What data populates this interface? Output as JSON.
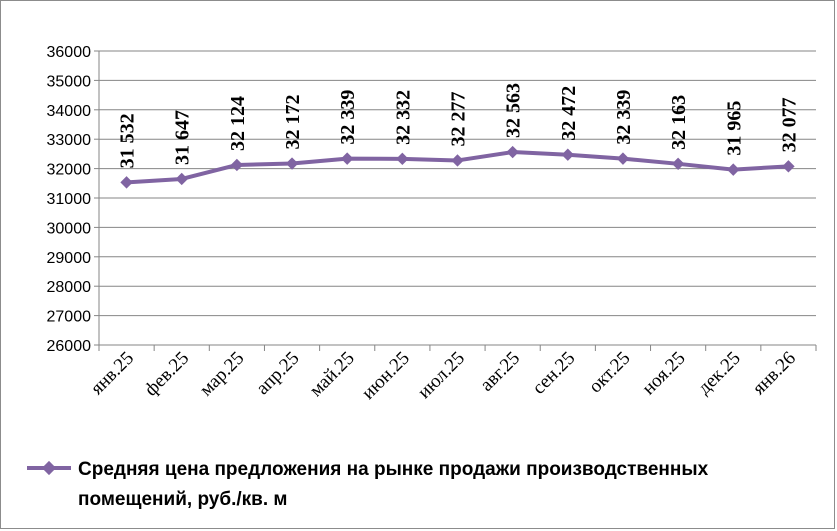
{
  "chart_data": {
    "type": "line",
    "categories": [
      "янв.25",
      "фев.25",
      "мар.25",
      "апр.25",
      "май.25",
      "июн.25",
      "июл.25",
      "авг.25",
      "сен.25",
      "окт.25",
      "ноя.25",
      "дек.25",
      "янв.26"
    ],
    "series": [
      {
        "name": "Средняя цена предложения на рынке продажи производственных помещений, руб./кв. м",
        "values": [
          31532,
          31647,
          32124,
          32172,
          32339,
          32332,
          32277,
          32563,
          32472,
          32339,
          32163,
          31965,
          32077
        ],
        "labels": [
          "31 532",
          "31 647",
          "32 124",
          "32 172",
          "32 339",
          "32 332",
          "32 277",
          "32 563",
          "32 472",
          "32 339",
          "32 163",
          "31 965",
          "32 077"
        ]
      }
    ],
    "yticks": [
      "26000",
      "27000",
      "28000",
      "29000",
      "30000",
      "31000",
      "32000",
      "33000",
      "34000",
      "35000",
      "36000"
    ],
    "ylim": [
      26000,
      36000
    ],
    "grid": true,
    "legend_position": "bottom",
    "legend_lines": [
      "Средняя цена предложения на рынке продажи производственных",
      "помещений,  руб./кв. м"
    ],
    "line_color": "#8064A2"
  }
}
